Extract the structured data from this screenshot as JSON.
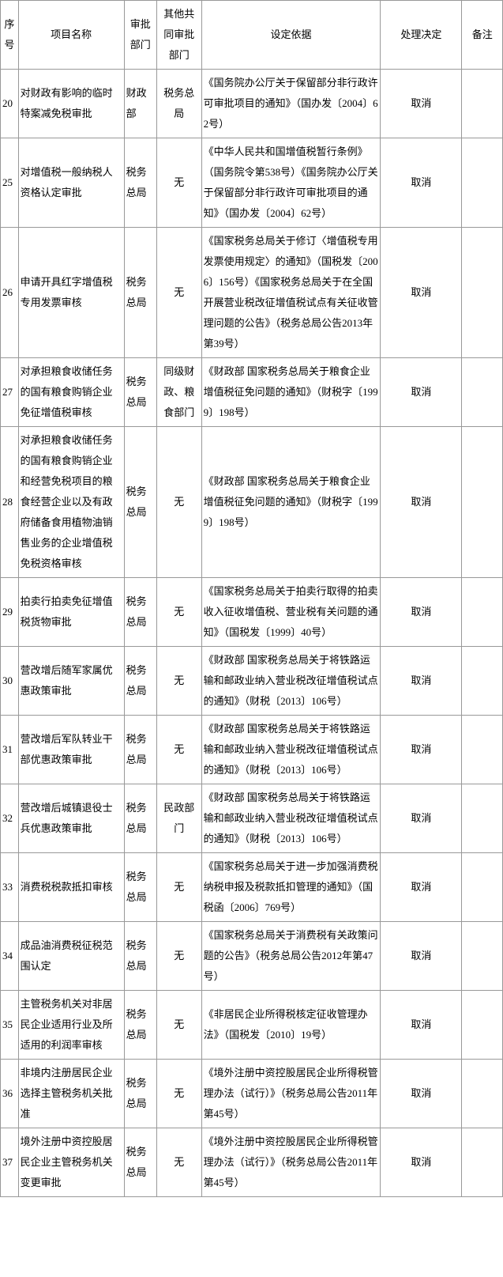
{
  "headers": {
    "seq": "序号",
    "name": "项目名称",
    "dept": "审批部门",
    "codept": "其他共同审批部门",
    "basis": "设定依据",
    "decision": "处理决定",
    "note": "备注"
  },
  "rows": [
    {
      "seq": "20",
      "name": "对财政有影响的临时特案减免税审批",
      "dept": "财政部",
      "codept": "税务总局",
      "basis": "《国务院办公厅关于保留部分非行政许可审批项目的通知》（国办发〔2004〕62号）",
      "decision": "取消",
      "note": ""
    },
    {
      "seq": "25",
      "name": "对增值税一般纳税人资格认定审批",
      "dept": "税务总局",
      "codept": "无",
      "basis": "《中华人民共和国增值税暂行条例》（国务院令第538号）《国务院办公厅关于保留部分非行政许可审批项目的通知》（国办发〔2004〕62号）",
      "decision": "取消",
      "note": ""
    },
    {
      "seq": "26",
      "name": "申请开具红字增值税专用发票审核",
      "dept": "税务总局",
      "codept": "无",
      "basis": "《国家税务总局关于修订〈增值税专用发票使用规定〉的通知》（国税发〔2006〕156号）《国家税务总局关于在全国开展营业税改征增值税试点有关征收管理问题的公告》（税务总局公告2013年第39号）",
      "decision": "取消",
      "note": ""
    },
    {
      "seq": "27",
      "name": "对承担粮食收储任务的国有粮食购销企业免征增值税审核",
      "dept": "税务总局",
      "codept": "同级财政、粮食部门",
      "basis": "《财政部 国家税务总局关于粮食企业增值税征免问题的通知》（财税字〔1999〕198号）",
      "decision": "取消",
      "note": ""
    },
    {
      "seq": "28",
      "name": "对承担粮食收储任务的国有粮食购销企业和经营免税项目的粮食经营企业以及有政府储备食用植物油销售业务的企业增值税免税资格审核",
      "dept": "税务总局",
      "codept": "无",
      "basis": "《财政部 国家税务总局关于粮食企业增值税征免问题的通知》（财税字〔1999〕198号）",
      "decision": "取消",
      "note": ""
    },
    {
      "seq": "29",
      "name": "拍卖行拍卖免征增值税货物审批",
      "dept": "税务总局",
      "codept": "无",
      "basis": "《国家税务总局关于拍卖行取得的拍卖收入征收增值税、营业税有关问题的通知》（国税发〔1999〕40号）",
      "decision": "取消",
      "note": ""
    },
    {
      "seq": "30",
      "name": "营改增后随军家属优惠政策审批",
      "dept": "税务总局",
      "codept": "无",
      "basis": "《财政部 国家税务总局关于将铁路运输和邮政业纳入营业税改征增值税试点的通知》（财税〔2013〕106号）",
      "decision": "取消",
      "note": ""
    },
    {
      "seq": "31",
      "name": "营改增后军队转业干部优惠政策审批",
      "dept": "税务总局",
      "codept": "无",
      "basis": "《财政部 国家税务总局关于将铁路运输和邮政业纳入营业税改征增值税试点的通知》（财税〔2013〕106号）",
      "decision": "取消",
      "note": ""
    },
    {
      "seq": "32",
      "name": "营改增后城镇退役士兵优惠政策审批",
      "dept": "税务总局",
      "codept": "民政部门",
      "basis": "《财政部 国家税务总局关于将铁路运输和邮政业纳入营业税改征增值税试点的通知》（财税〔2013〕106号）",
      "decision": "取消",
      "note": ""
    },
    {
      "seq": "33",
      "name": "消费税税款抵扣审核",
      "dept": "税务总局",
      "codept": "无",
      "basis": "《国家税务总局关于进一步加强消费税纳税申报及税款抵扣管理的通知》（国税函〔2006〕769号）",
      "decision": "取消",
      "note": ""
    },
    {
      "seq": "34",
      "name": "成品油消费税征税范围认定",
      "dept": "税务总局",
      "codept": "无",
      "basis": "《国家税务总局关于消费税有关政策问题的公告》（税务总局公告2012年第47号）",
      "decision": "取消",
      "note": ""
    },
    {
      "seq": "35",
      "name": "主管税务机关对非居民企业适用行业及所适用的利润率审核",
      "dept": "税务总局",
      "codept": "无",
      "basis": "《非居民企业所得税核定征收管理办法》（国税发〔2010〕19号）",
      "decision": "取消",
      "note": ""
    },
    {
      "seq": "36",
      "name": "非境内注册居民企业选择主管税务机关批准",
      "dept": "税务总局",
      "codept": "无",
      "basis": "《境外注册中资控股居民企业所得税管理办法（试行）》（税务总局公告2011年第45号）",
      "decision": "取消",
      "note": ""
    },
    {
      "seq": "37",
      "name": "境外注册中资控股居民企业主管税务机关变更审批",
      "dept": "税务总局",
      "codept": "无",
      "basis": "《境外注册中资控股居民企业所得税管理办法（试行）》（税务总局公告2011年第45号）",
      "decision": "取消",
      "note": ""
    }
  ]
}
